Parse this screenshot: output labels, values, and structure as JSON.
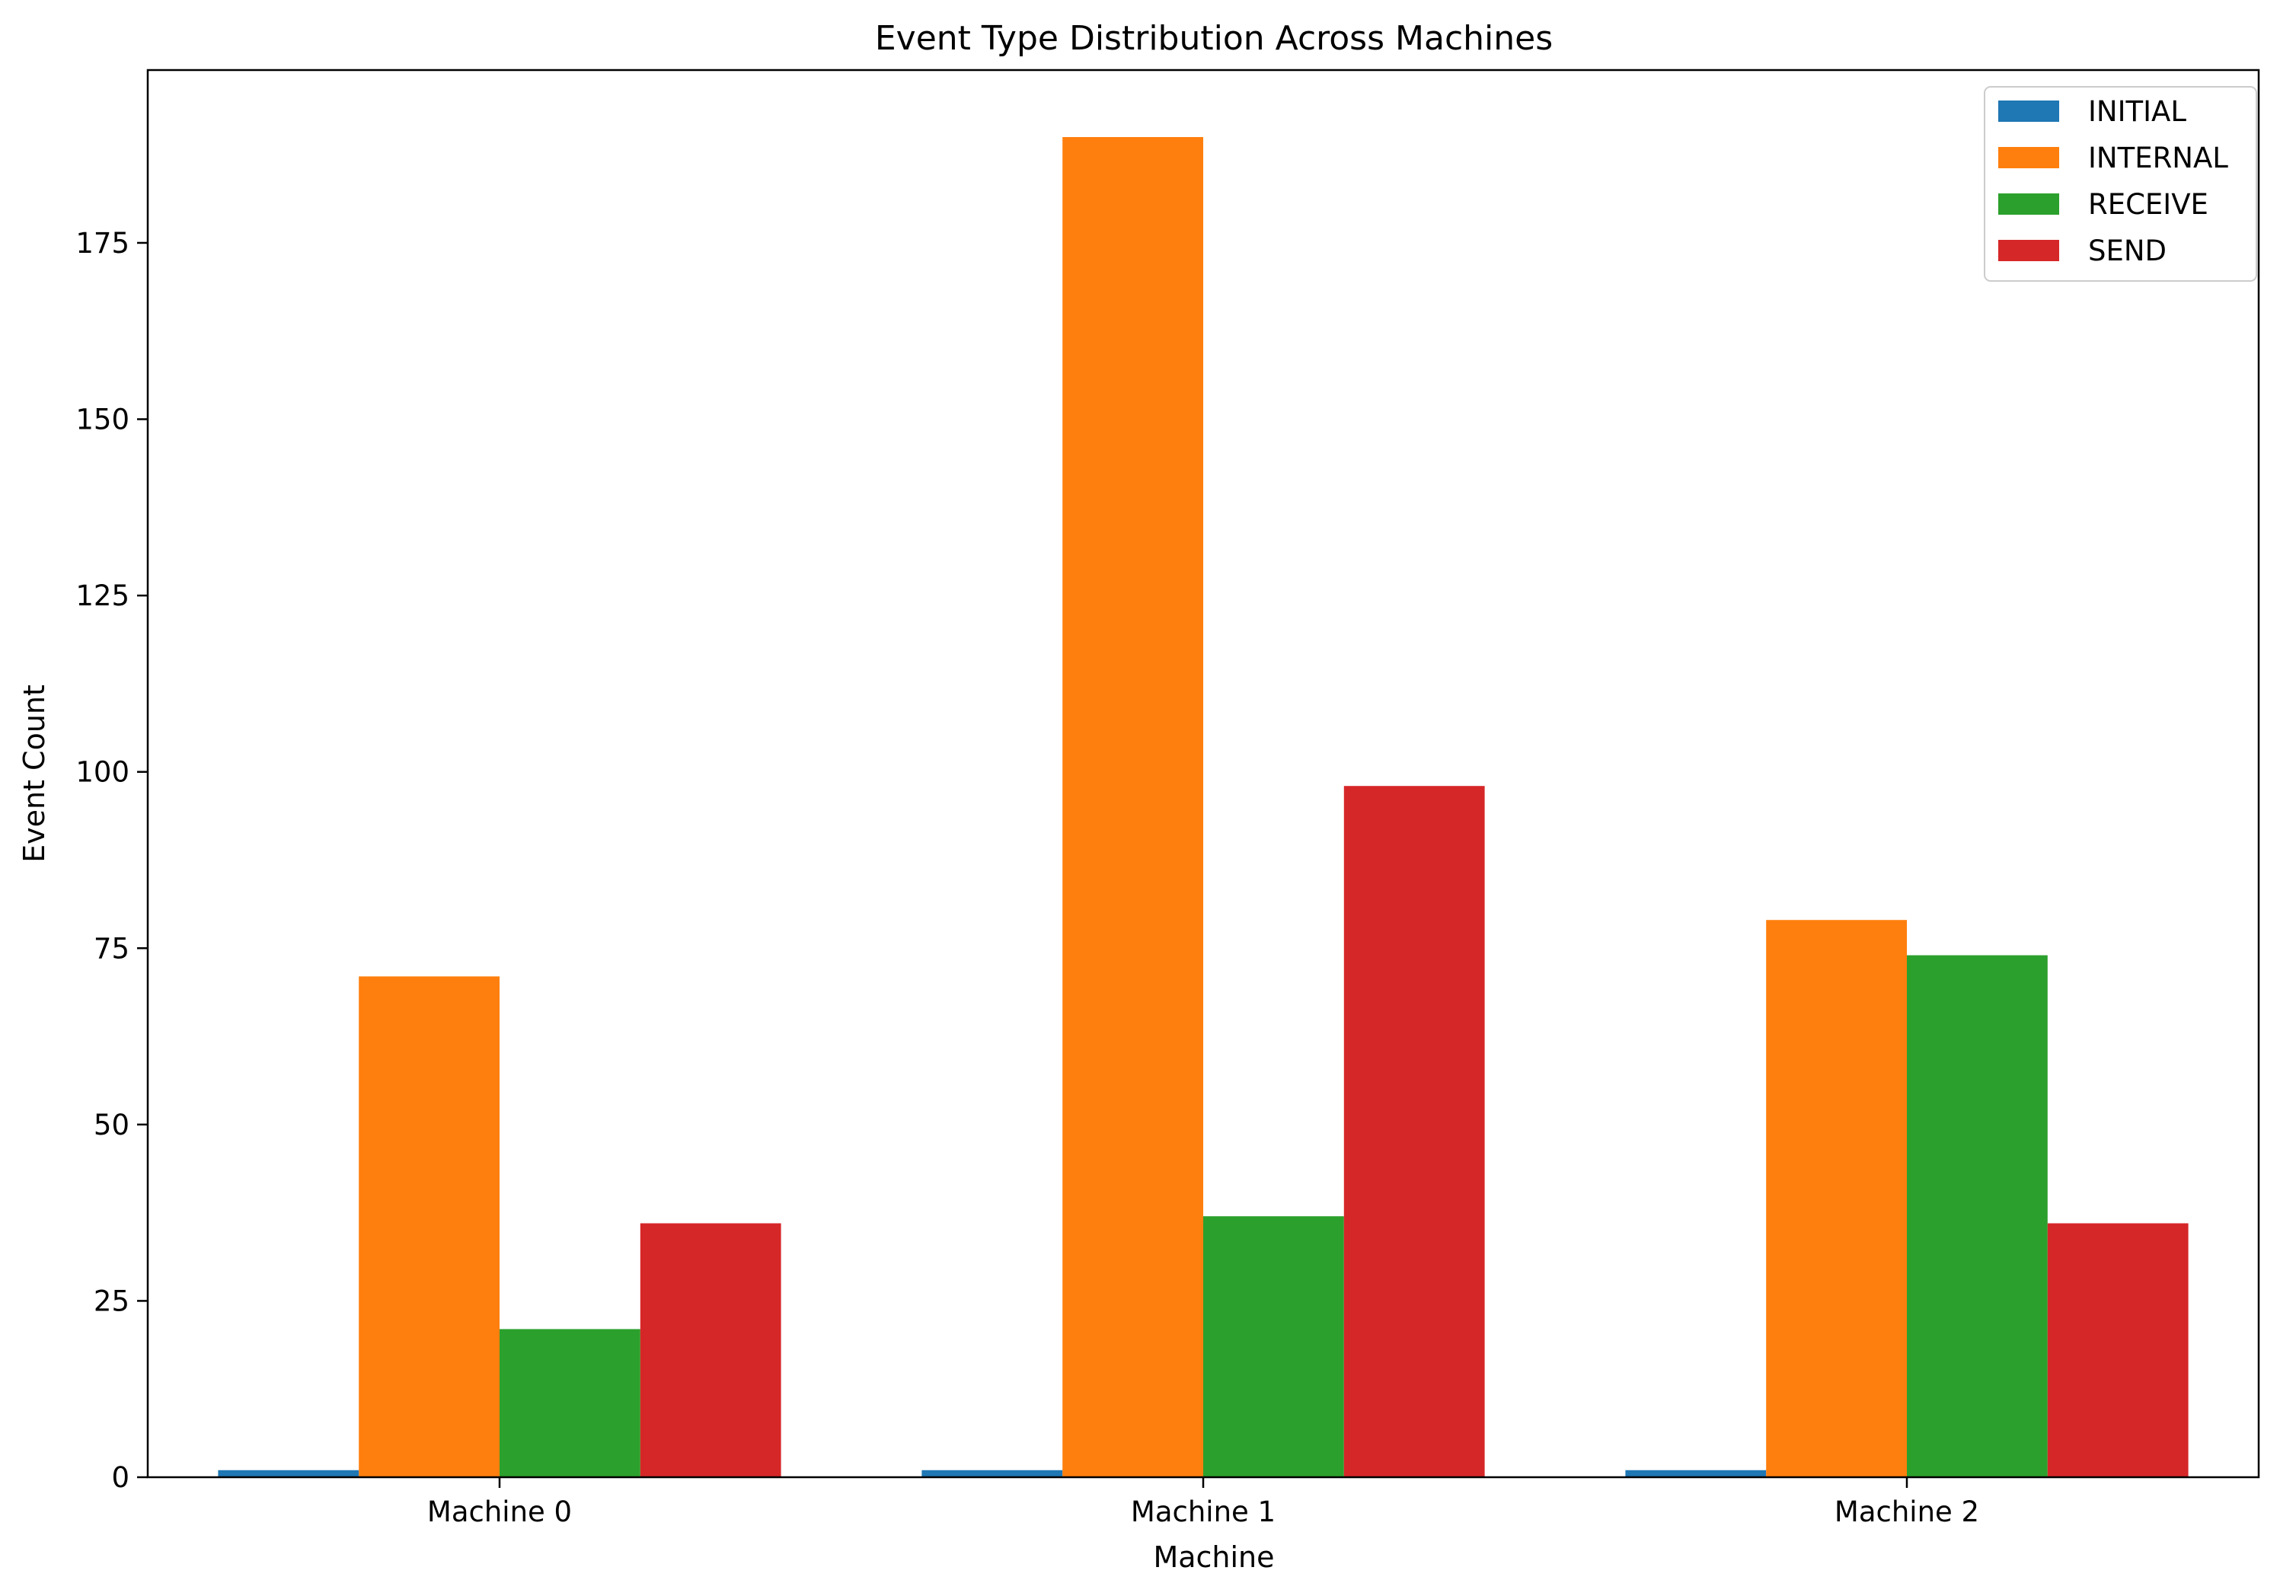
{
  "chart_data": {
    "type": "bar",
    "title": "Event Type Distribution Across Machines",
    "xlabel": "Machine",
    "ylabel": "Event Count",
    "categories": [
      "Machine 0",
      "Machine 1",
      "Machine 2"
    ],
    "series": [
      {
        "name": "INITIAL",
        "color": "#1f77b4",
        "values": [
          1,
          1,
          1
        ]
      },
      {
        "name": "INTERNAL",
        "color": "#ff7f0e",
        "values": [
          71,
          190,
          79
        ]
      },
      {
        "name": "RECEIVE",
        "color": "#2ca02c",
        "values": [
          21,
          37,
          74
        ]
      },
      {
        "name": "SEND",
        "color": "#d62728",
        "values": [
          36,
          98,
          36
        ]
      }
    ],
    "ylim": [
      0,
      199.5
    ],
    "yticks": [
      0,
      25,
      50,
      75,
      100,
      125,
      150,
      175
    ],
    "grid": false,
    "legend_position": "top-right"
  }
}
